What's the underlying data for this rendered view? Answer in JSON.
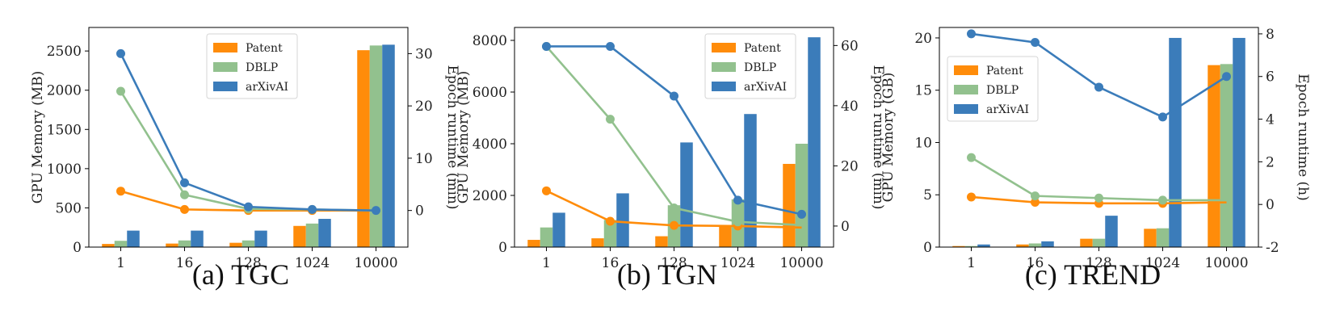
{
  "colors": {
    "Patent": "#ff8c0a",
    "DBLP": "#92c18e",
    "arXivAI": "#3b7cba"
  },
  "chart_data": [
    {
      "type": "bar",
      "caption": "(a) TGC",
      "categories": [
        "1",
        "16",
        "128",
        "1024",
        "10000"
      ],
      "ylabel": "GPU Memory (MB)",
      "ylim": [
        0,
        2800
      ],
      "yticks": [
        0,
        500,
        1000,
        1500,
        2000,
        2500
      ],
      "y2label": "Epoch runtime (min)",
      "y2lim": [
        -7,
        35
      ],
      "y2ticks": [
        0,
        10,
        20,
        30
      ],
      "legend_position": "top-center",
      "series": [
        {
          "name": "Patent",
          "values": [
            40,
            45,
            55,
            270,
            2510
          ]
        },
        {
          "name": "DBLP",
          "values": [
            80,
            85,
            85,
            300,
            2570
          ]
        },
        {
          "name": "arXivAI",
          "values": [
            210,
            210,
            210,
            360,
            2580
          ]
        }
      ],
      "lines": [
        {
          "name": "Patent",
          "values": [
            3.7,
            0.2,
            0,
            0,
            0
          ]
        },
        {
          "name": "DBLP",
          "values": [
            22.8,
            3.0,
            0.3,
            0.2,
            0
          ]
        },
        {
          "name": "arXivAI",
          "values": [
            30.0,
            5.3,
            0.7,
            0.2,
            0
          ]
        }
      ]
    },
    {
      "type": "bar",
      "caption": "(b) TGN",
      "categories": [
        "1",
        "16",
        "128",
        "1024",
        "10000"
      ],
      "ylabel": "GPU Memory (MB)",
      "ylim": [
        0,
        8500
      ],
      "yticks": [
        0,
        2000,
        4000,
        6000,
        8000
      ],
      "y2label": "Epoch runtime (min)",
      "y2lim": [
        -7,
        66
      ],
      "y2ticks": [
        0,
        20,
        40,
        60
      ],
      "legend_position": "top-right",
      "series": [
        {
          "name": "Patent",
          "values": [
            280,
            340,
            420,
            830,
            3220
          ]
        },
        {
          "name": "DBLP",
          "values": [
            760,
            1050,
            1620,
            1850,
            4000
          ]
        },
        {
          "name": "arXivAI",
          "values": [
            1330,
            2080,
            4050,
            5150,
            8120
          ]
        }
      ],
      "lines": [
        {
          "name": "Patent",
          "values": [
            11.7,
            1.6,
            0.2,
            0,
            -0.5
          ]
        },
        {
          "name": "DBLP",
          "values": [
            59.7,
            35.5,
            6.0,
            1.4,
            0.3
          ]
        },
        {
          "name": "arXivAI",
          "values": [
            59.7,
            59.7,
            43.2,
            8.6,
            3.9
          ]
        }
      ]
    },
    {
      "type": "bar",
      "caption": "(c) TREND",
      "categories": [
        "1",
        "16",
        "128",
        "1024",
        "10000"
      ],
      "ylabel": "GPU Memory (GB)",
      "ylim": [
        0,
        21
      ],
      "yticks": [
        0,
        5,
        10,
        15,
        20
      ],
      "y2label": "Epoch runtime (h)",
      "y2lim": [
        -2,
        8.3
      ],
      "y2ticks": [
        -2,
        0,
        2,
        4,
        6,
        8
      ],
      "legend_position": "upper-left",
      "series": [
        {
          "name": "Patent",
          "values": [
            0.1,
            0.25,
            0.8,
            1.75,
            17.4
          ]
        },
        {
          "name": "DBLP",
          "values": [
            0.1,
            0.35,
            0.8,
            1.8,
            17.5
          ]
        },
        {
          "name": "arXivAI",
          "values": [
            0.25,
            0.55,
            3.0,
            20,
            20
          ]
        }
      ],
      "lines": [
        {
          "name": "Patent",
          "values": [
            0.35,
            0.1,
            0.05,
            0.05,
            0.1
          ]
        },
        {
          "name": "DBLP",
          "values": [
            2.2,
            0.4,
            0.3,
            0.2,
            0.2
          ]
        },
        {
          "name": "arXivAI",
          "values": [
            8.0,
            7.6,
            5.5,
            4.1,
            6.0
          ]
        }
      ]
    }
  ]
}
